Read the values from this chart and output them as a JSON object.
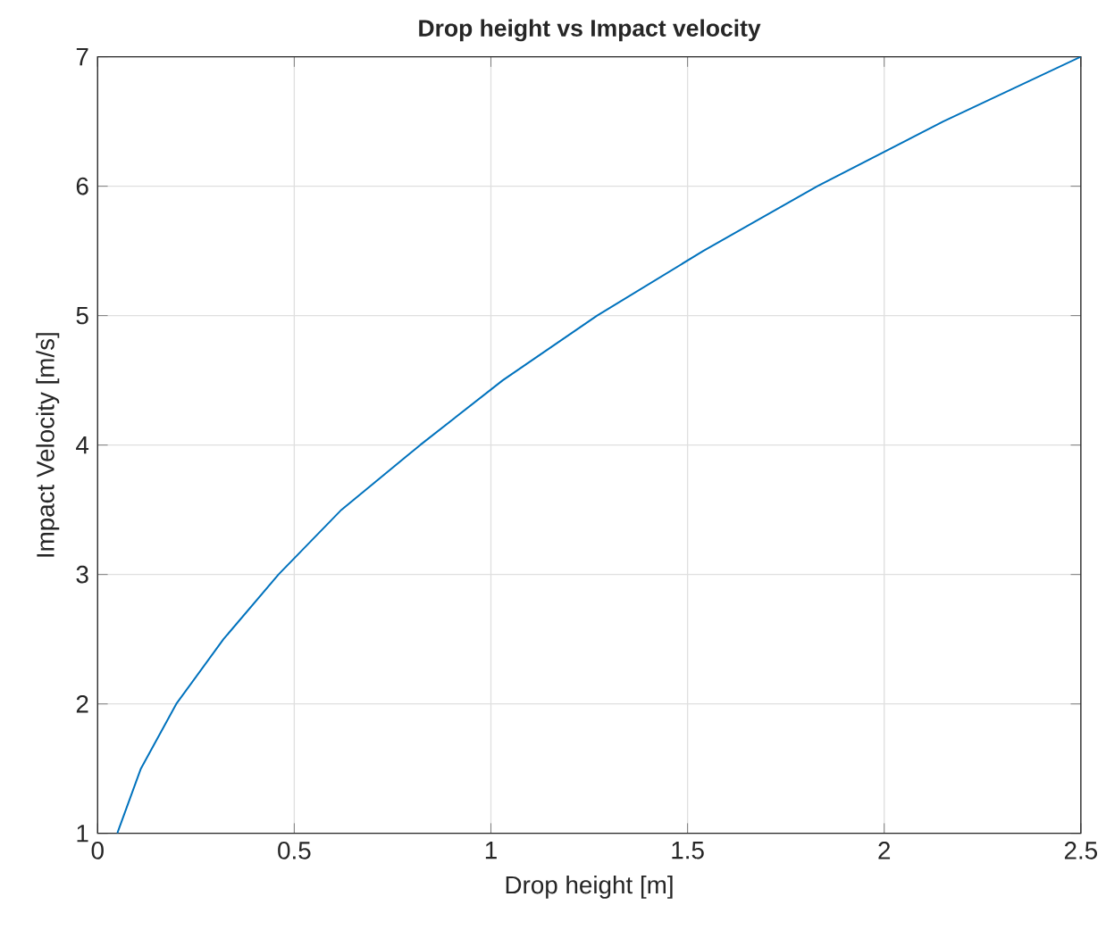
{
  "chart_data": {
    "type": "line",
    "title": "Drop height vs Impact velocity",
    "xlabel": "Drop height [m]",
    "ylabel": "Impact Velocity [m/s]",
    "x": [
      0.05,
      0.11,
      0.2,
      0.32,
      0.46,
      0.62,
      0.82,
      1.03,
      1.27,
      1.54,
      1.83,
      2.15,
      2.5
    ],
    "series": [
      {
        "color": "#0072bd",
        "values": [
          1,
          1.5,
          2,
          2.5,
          3,
          3.5,
          4,
          4.5,
          5,
          5.5,
          6,
          6.5,
          7
        ]
      }
    ],
    "xlim": [
      0,
      2.5
    ],
    "ylim": [
      1,
      7
    ],
    "xticks": [
      0,
      0.5,
      1,
      1.5,
      2,
      2.5
    ],
    "yticks": [
      1,
      2,
      3,
      4,
      5,
      6,
      7
    ],
    "grid": true
  }
}
